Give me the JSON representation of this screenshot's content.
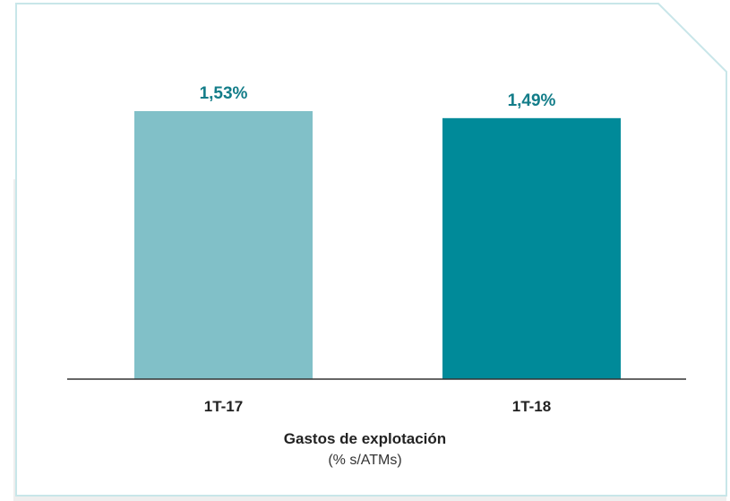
{
  "chart_data": {
    "type": "bar",
    "categories": [
      "1T-17",
      "1T-18"
    ],
    "values": [
      1.53,
      1.49
    ],
    "value_labels": [
      "1,53%",
      "1,49%"
    ],
    "title": "Gastos de explotación",
    "subtitle": "(% s/ATMs)",
    "xlabel": "",
    "ylabel": "",
    "ylim": [
      0,
      1.53
    ],
    "grid": false,
    "legend": "none",
    "bar_colors": [
      "#81c0c8",
      "#008a99"
    ],
    "label_color": "#137d89"
  },
  "colors": {
    "card_border": "#c8e6e9",
    "card_shadow": "#e9e9e9",
    "axis_line": "#333333"
  }
}
